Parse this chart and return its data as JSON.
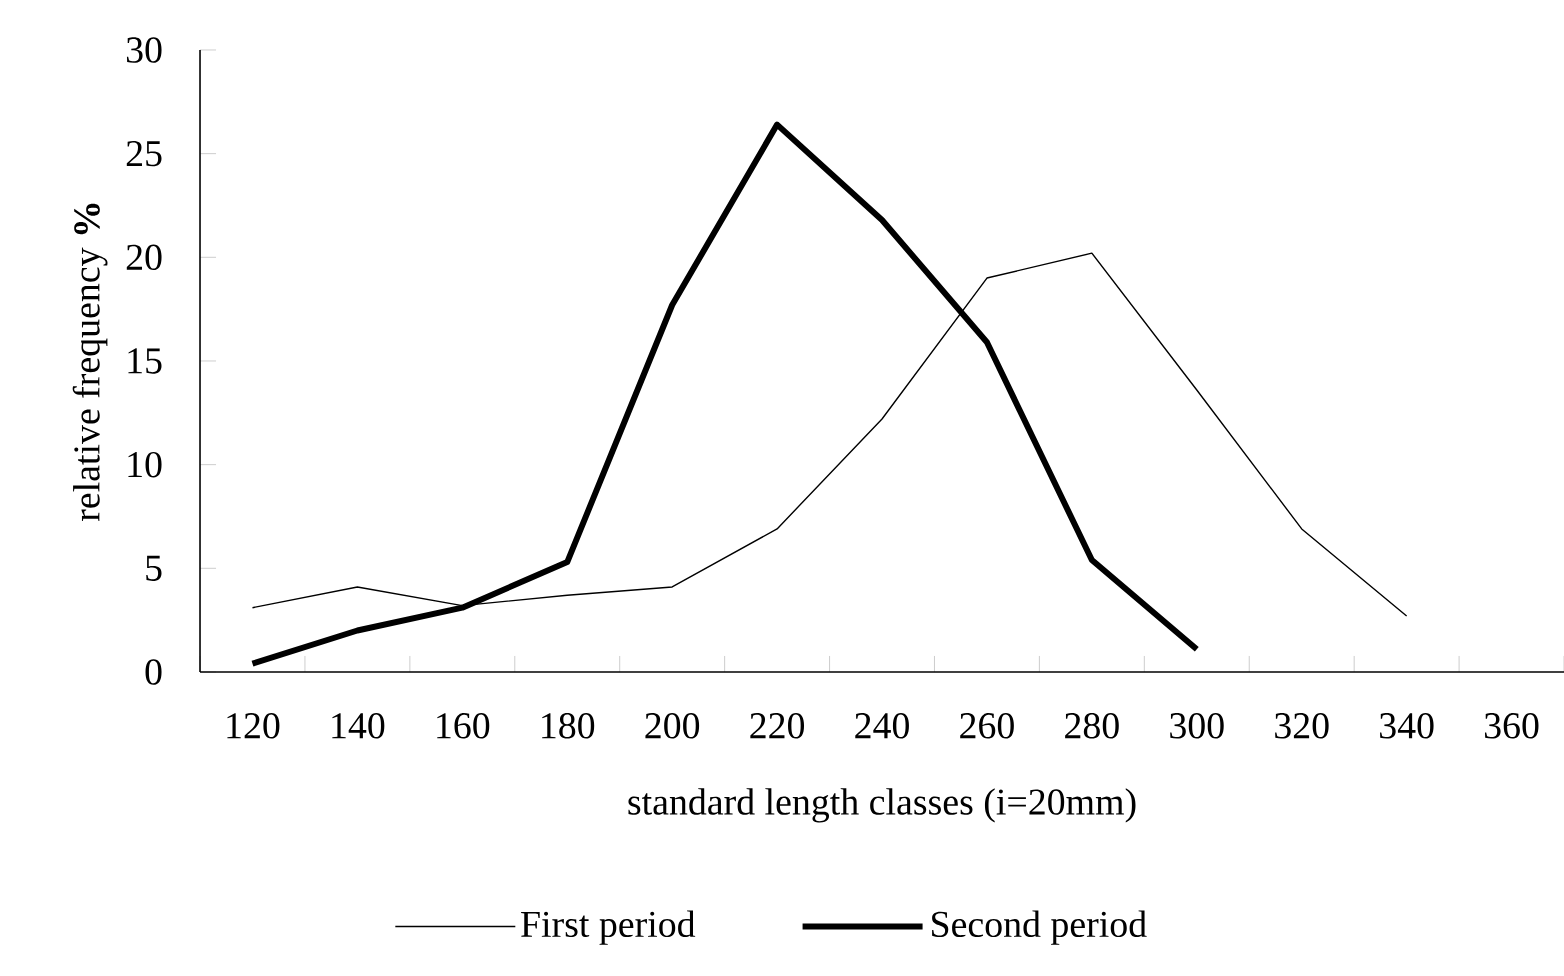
{
  "chart_data": {
    "type": "line",
    "xlabel": "standard length classes (i=20mm)",
    "ylabel": "relative frequency **%**",
    "categories": [
      "120",
      "140",
      "160",
      "180",
      "200",
      "220",
      "240",
      "260",
      "280",
      "300",
      "320",
      "340",
      "360"
    ],
    "series": [
      {
        "name": "First period",
        "color": "#000000",
        "values": [
          3.1,
          4.1,
          3.2,
          3.7,
          4.1,
          6.9,
          12.2,
          19.0,
          20.2,
          13.6,
          6.9,
          2.7,
          null
        ]
      },
      {
        "name": "Second period",
        "color": "#000000",
        "values": [
          0.4,
          2.0,
          3.1,
          5.3,
          17.7,
          26.4,
          21.8,
          15.9,
          5.4,
          1.1,
          null,
          null,
          null
        ]
      }
    ],
    "ylim": [
      0,
      30
    ],
    "yticks": [
      0,
      5,
      10,
      15,
      20,
      25,
      30
    ],
    "grid": false,
    "legend": "bottom",
    "marker": "none",
    "line_style": "solid"
  }
}
